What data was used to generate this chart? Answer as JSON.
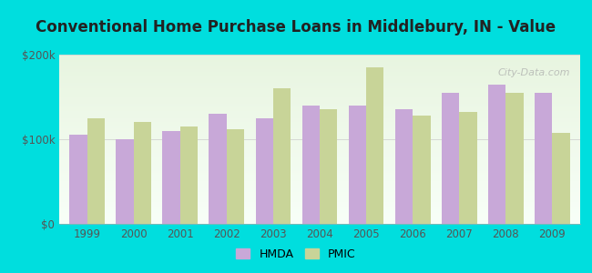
{
  "title": "Conventional Home Purchase Loans in Middlebury, IN - Value",
  "years": [
    1999,
    2000,
    2001,
    2002,
    2003,
    2004,
    2005,
    2006,
    2007,
    2008,
    2009
  ],
  "hmda": [
    105000,
    100000,
    110000,
    130000,
    125000,
    140000,
    140000,
    135000,
    155000,
    165000,
    155000
  ],
  "pmic": [
    125000,
    120000,
    115000,
    112000,
    160000,
    135000,
    185000,
    128000,
    132000,
    155000,
    108000
  ],
  "hmda_color": "#c8a8d8",
  "pmic_color": "#c8d498",
  "background_color": "#00dede",
  "plot_bg_gradient_top": "#e8f5e0",
  "plot_bg_gradient_bottom": "#f8fff8",
  "ylim": [
    0,
    200000
  ],
  "yticks": [
    0,
    100000,
    200000
  ],
  "ytick_labels": [
    "$0",
    "$100k",
    "$200k"
  ],
  "legend_hmda": "HMDA",
  "legend_pmic": "PMIC",
  "title_fontsize": 12,
  "tick_fontsize": 8.5,
  "legend_fontsize": 9,
  "watermark": "City-Data.com"
}
